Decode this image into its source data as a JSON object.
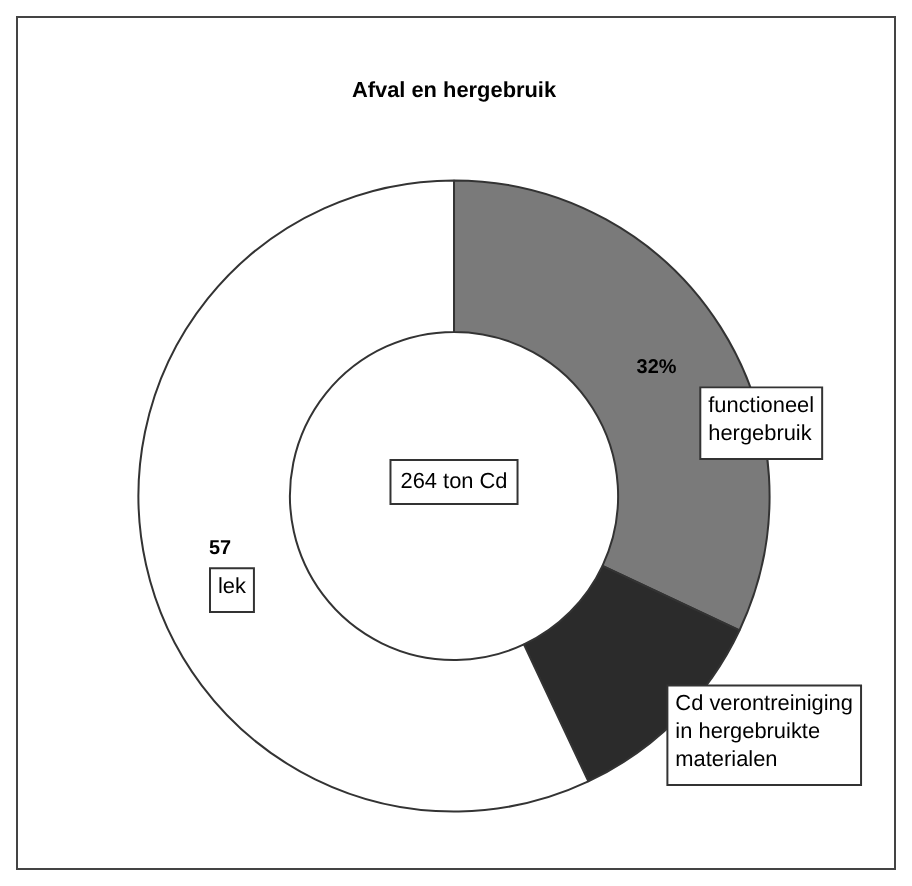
{
  "chart_data": {
    "type": "donut",
    "title": "Afval en hergebruik",
    "categories": [
      "functioneel hergebruik",
      "Cd verontreiniging in hergebruikte materialen",
      "lek"
    ],
    "values": [
      32,
      11,
      57
    ],
    "colors": [
      "#7a7a7a",
      "#2b2b2b",
      "#ffffff"
    ],
    "value_labels": [
      "32%",
      null,
      "57"
    ],
    "annotations": [
      "264 ton Cd"
    ],
    "legend": false
  }
}
